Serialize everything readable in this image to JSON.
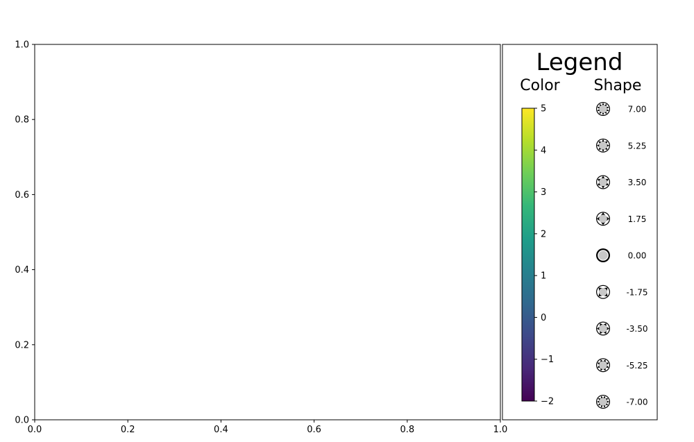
{
  "chart_data": [
    {
      "type": "scatter",
      "title": "",
      "xlabel": "",
      "ylabel": "",
      "xlim": [
        0.0,
        1.0
      ],
      "ylim": [
        0.0,
        1.0
      ],
      "x_ticks": [
        "0.0",
        "0.2",
        "0.4",
        "0.6",
        "0.8",
        "1.0"
      ],
      "y_ticks": [
        "0.0",
        "0.2",
        "0.4",
        "0.6",
        "0.8",
        "1.0"
      ],
      "points": [],
      "grid": false
    },
    {
      "type": "legend",
      "title": "Legend",
      "color": {
        "label": "Color",
        "colormap": "viridis",
        "range": [
          -2,
          5
        ],
        "ticks": [
          "−2",
          "−1",
          "0",
          "1",
          "2",
          "3",
          "4",
          "5"
        ]
      },
      "shape": {
        "label": "Shape",
        "values": [
          "7.00",
          "5.25",
          "3.50",
          "1.75",
          "0.00",
          "-1.75",
          "-3.50",
          "-5.25",
          "-7.00"
        ]
      }
    }
  ],
  "colors": {
    "viridis": [
      "#440154",
      "#482878",
      "#3e4989",
      "#31688e",
      "#26828e",
      "#1f9e89",
      "#35b779",
      "#6ece58",
      "#b5de2b",
      "#fde725"
    ],
    "marker_fill": "#c8c8c8",
    "marker_stroke": "#000000"
  }
}
